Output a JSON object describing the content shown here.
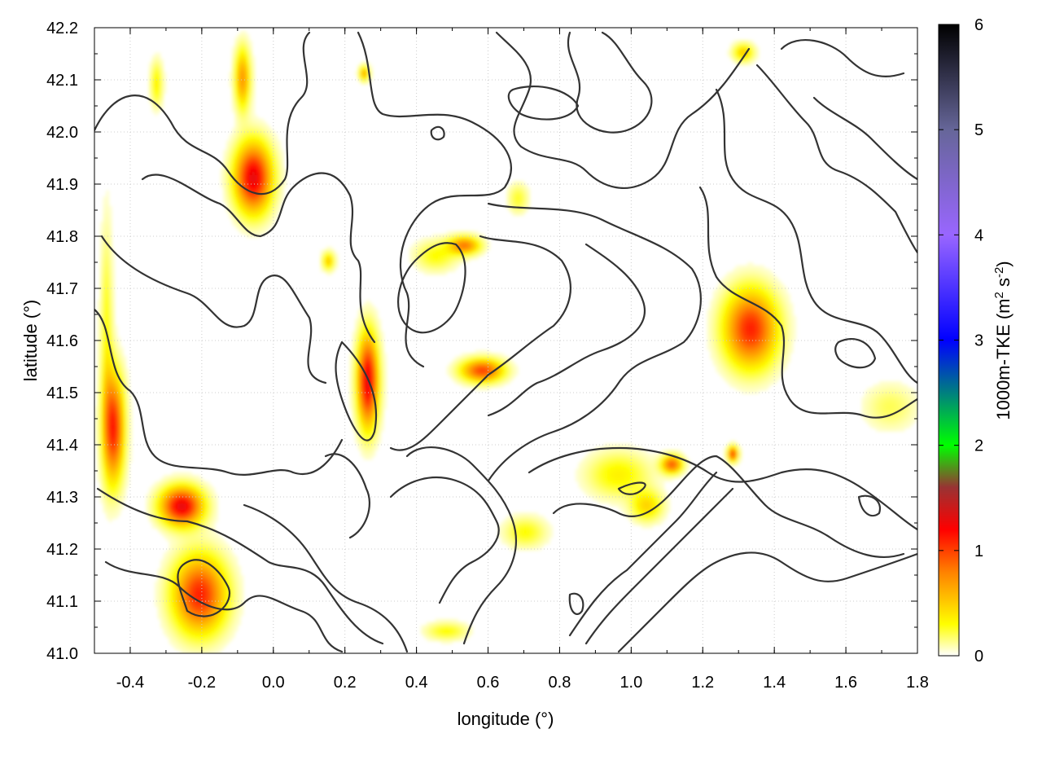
{
  "chart_data": {
    "type": "heatmap",
    "title": "",
    "xlabel": "longitude (°)",
    "ylabel": "latitude (°)",
    "xlim": [
      -0.5,
      1.8
    ],
    "ylim": [
      41.0,
      42.2
    ],
    "xticks": [
      -0.4,
      -0.2,
      0.0,
      0.2,
      0.4,
      0.6,
      0.8,
      1.0,
      1.2,
      1.4,
      1.6,
      1.8
    ],
    "xtick_labels": [
      "-0.4",
      "-0.2",
      "0.0",
      "0.2",
      "0.4",
      "0.6",
      "0.8",
      "1.0",
      "1.2",
      "1.4",
      "1.6",
      "1.8"
    ],
    "yticks": [
      41.0,
      41.1,
      41.2,
      41.3,
      41.4,
      41.5,
      41.6,
      41.7,
      41.8,
      41.9,
      42.0,
      42.1,
      42.2
    ],
    "ytick_labels": [
      "41.0",
      "41.1",
      "41.2",
      "41.3",
      "41.4",
      "41.5",
      "41.6",
      "41.7",
      "41.8",
      "41.9",
      "42.0",
      "42.1",
      "42.2"
    ],
    "grid": true,
    "colorbar": {
      "label": "1000m-TKE (m² s⁻²)",
      "label_main": "1000m-TKE (m",
      "label_sup1": "2",
      "label_mid": " s",
      "label_sup2": "-2",
      "label_end": ")",
      "range": [
        0,
        6
      ],
      "ticks": [
        0,
        1,
        2,
        3,
        4,
        5,
        6
      ],
      "tick_labels": [
        "0",
        "1",
        "2",
        "3",
        "4",
        "5",
        "6"
      ],
      "stops": [
        {
          "v": 0.0,
          "color": "#ffffff"
        },
        {
          "v": 0.3,
          "color": "#ffff00"
        },
        {
          "v": 0.8,
          "color": "#ff8000"
        },
        {
          "v": 1.2,
          "color": "#ff0000"
        },
        {
          "v": 1.6,
          "color": "#993333"
        },
        {
          "v": 2.0,
          "color": "#00ff00"
        },
        {
          "v": 3.0,
          "color": "#0000ff"
        },
        {
          "v": 4.0,
          "color": "#9966ff"
        },
        {
          "v": 5.0,
          "color": "#666699"
        },
        {
          "v": 6.0,
          "color": "#000000"
        }
      ]
    },
    "hotspots": [
      {
        "lon": -0.06,
        "lat": 41.91,
        "sx": 0.035,
        "sy": 0.045,
        "value": 1.3
      },
      {
        "lon": -0.09,
        "lat": 42.1,
        "sx": 0.015,
        "sy": 0.04,
        "value": 0.7
      },
      {
        "lon": -0.33,
        "lat": 42.09,
        "sx": 0.012,
        "sy": 0.03,
        "value": 0.35
      },
      {
        "lon": -0.45,
        "lat": 41.43,
        "sx": 0.02,
        "sy": 0.07,
        "value": 1.1
      },
      {
        "lon": -0.47,
        "lat": 41.6,
        "sx": 0.012,
        "sy": 0.15,
        "value": 0.3
      },
      {
        "lon": -0.26,
        "lat": 41.28,
        "sx": 0.04,
        "sy": 0.025,
        "value": 1.3
      },
      {
        "lon": -0.21,
        "lat": 41.11,
        "sx": 0.05,
        "sy": 0.05,
        "value": 1.1
      },
      {
        "lon": 0.26,
        "lat": 41.52,
        "sx": 0.02,
        "sy": 0.06,
        "value": 1.3
      },
      {
        "lon": 0.58,
        "lat": 41.54,
        "sx": 0.04,
        "sy": 0.015,
        "value": 1.0
      },
      {
        "lon": 0.53,
        "lat": 41.78,
        "sx": 0.03,
        "sy": 0.012,
        "value": 0.8
      },
      {
        "lon": 0.45,
        "lat": 41.76,
        "sx": 0.04,
        "sy": 0.02,
        "value": 0.3
      },
      {
        "lon": 1.33,
        "lat": 41.62,
        "sx": 0.05,
        "sy": 0.05,
        "value": 1.1
      },
      {
        "lon": 1.28,
        "lat": 41.38,
        "sx": 0.01,
        "sy": 0.01,
        "value": 1.0
      },
      {
        "lon": 1.11,
        "lat": 41.36,
        "sx": 0.02,
        "sy": 0.012,
        "value": 0.9
      },
      {
        "lon": 0.96,
        "lat": 41.34,
        "sx": 0.06,
        "sy": 0.03,
        "value": 0.35
      },
      {
        "lon": 1.04,
        "lat": 41.28,
        "sx": 0.03,
        "sy": 0.02,
        "value": 0.45
      },
      {
        "lon": 1.31,
        "lat": 42.15,
        "sx": 0.02,
        "sy": 0.012,
        "value": 0.5
      },
      {
        "lon": 0.15,
        "lat": 41.75,
        "sx": 0.012,
        "sy": 0.012,
        "value": 0.5
      },
      {
        "lon": 0.7,
        "lat": 41.23,
        "sx": 0.04,
        "sy": 0.02,
        "value": 0.3
      },
      {
        "lon": 0.48,
        "lat": 41.04,
        "sx": 0.04,
        "sy": 0.012,
        "value": 0.3
      },
      {
        "lon": 0.68,
        "lat": 41.87,
        "sx": 0.02,
        "sy": 0.02,
        "value": 0.25
      },
      {
        "lon": 1.72,
        "lat": 41.47,
        "sx": 0.05,
        "sy": 0.03,
        "value": 0.2
      },
      {
        "lon": 0.25,
        "lat": 42.11,
        "sx": 0.01,
        "sy": 0.01,
        "value": 0.6
      }
    ]
  }
}
